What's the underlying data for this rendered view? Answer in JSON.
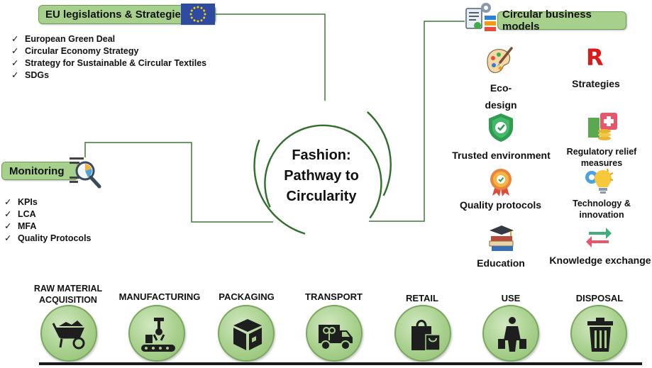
{
  "eu": {
    "title": "EU legislations & Strategies",
    "items": [
      "European Green Deal",
      "Circular Economy Strategy",
      "Strategy for Sustainable & Circular Textiles",
      "SDGs"
    ]
  },
  "monitoring": {
    "title": "Monitoring",
    "items": [
      "KPIs",
      "LCA",
      "MFA",
      "Quality Protocols"
    ]
  },
  "center": {
    "line1": "Fashion:",
    "line2": "Pathway to",
    "line3": "Circularity"
  },
  "cbm": {
    "title": "Circular business models",
    "eco_line1": "Eco-",
    "eco_line2": "design",
    "strategies": "Strategies",
    "strategies_glyph": "R",
    "trusted": "Trusted environment",
    "regulatory_line1": "Regulatory relief",
    "regulatory_line2": "measures",
    "quality": "Quality protocols",
    "technology_line1": "Technology &",
    "technology_line2": "innovation",
    "education": "Education",
    "knowledge": "Knowledge exchange"
  },
  "stages": {
    "raw_line1": "RAW MATERIAL",
    "raw_line2": "ACQUISITION",
    "manufacturing": "MANUFACTURING",
    "packaging": "PACKAGING",
    "transport": "TRANSPORT",
    "retail": "RETAIL",
    "use": "USE",
    "disposal": "DISPOSAL"
  },
  "check_mark": "✓",
  "colors": {
    "pill_green": "#a8d08d",
    "line_green": "#3d7a35",
    "eu_blue": "#2e4ba1",
    "eu_star": "#f2d200"
  },
  "icons": [
    "eu-flag-icon",
    "magnifier-chart-icon",
    "business-plan-icon",
    "eco-design-brush-icon",
    "strategy-r-icon",
    "shield-check-icon",
    "money-plus-icon",
    "quality-badge-icon",
    "lightbulb-gear-icon",
    "books-graduation-cap-icon",
    "exchange-arrows-icon",
    "wheelbarrow-icon",
    "robot-arm-conveyor-icon",
    "box-icon",
    "delivery-truck-icon",
    "shopping-bag-icon",
    "person-with-bags-icon",
    "trash-bin-icon"
  ]
}
